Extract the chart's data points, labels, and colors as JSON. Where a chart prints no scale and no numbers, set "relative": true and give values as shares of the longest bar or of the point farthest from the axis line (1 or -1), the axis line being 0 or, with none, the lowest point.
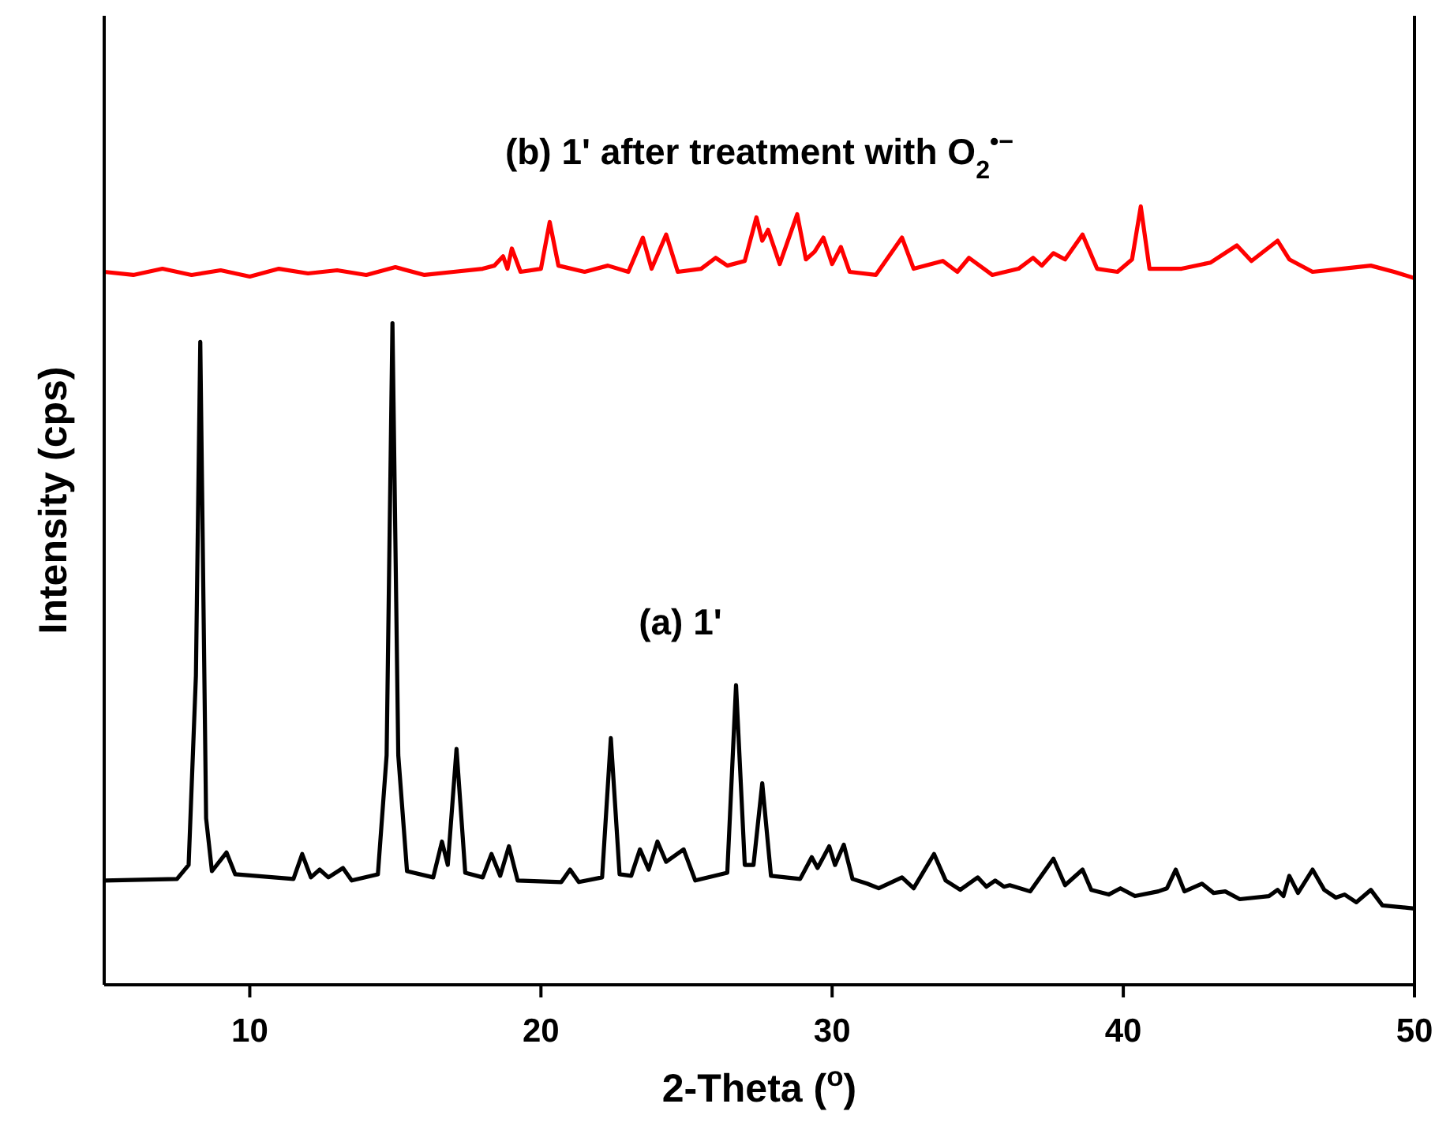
{
  "chart_data": {
    "type": "line",
    "relative": true,
    "xlabel": "2-Theta ($^{o}$)",
    "ylabel": "Intensity (cps)",
    "xlim": [
      5,
      50
    ],
    "xticks": [
      10,
      20,
      30,
      40,
      50
    ],
    "tick_labels": "x",
    "grid": false,
    "line_style": "solid",
    "series": [
      {
        "name": "(a) 1'",
        "color": "#000000",
        "x": [
          5,
          7.5,
          7.9,
          8.15,
          8.3,
          8.5,
          8.7,
          9.2,
          9.5,
          11.5,
          11.8,
          12.1,
          12.4,
          12.7,
          13.2,
          13.5,
          14.4,
          14.7,
          14.9,
          15.1,
          15.4,
          16.3,
          16.6,
          16.8,
          17.1,
          17.4,
          18,
          18.3,
          18.6,
          18.9,
          19.2,
          20.7,
          21,
          21.3,
          22.1,
          22.4,
          22.7,
          23.1,
          23.4,
          23.7,
          24,
          24.3,
          24.9,
          25.3,
          26.4,
          26.7,
          27,
          27.3,
          27.6,
          27.9,
          28.9,
          29.3,
          29.5,
          29.9,
          30.1,
          30.4,
          30.7,
          31.2,
          31.6,
          32.4,
          32.8,
          33.5,
          33.9,
          34.4,
          35,
          35.3,
          35.6,
          35.9,
          36.1,
          36.8,
          37.6,
          38,
          38.6,
          38.9,
          39.5,
          39.9,
          40.4,
          41.2,
          41.5,
          41.8,
          42.1,
          42.7,
          43.1,
          43.5,
          44,
          45,
          45.3,
          45.5,
          45.7,
          46,
          46.5,
          46.9,
          47.3,
          47.6,
          48,
          48.5,
          48.9,
          50
        ],
        "values": [
          0.134,
          0.136,
          0.154,
          0.397,
          0.826,
          0.214,
          0.146,
          0.17,
          0.142,
          0.136,
          0.168,
          0.138,
          0.148,
          0.138,
          0.15,
          0.134,
          0.142,
          0.295,
          0.85,
          0.295,
          0.146,
          0.138,
          0.184,
          0.154,
          0.303,
          0.144,
          0.138,
          0.168,
          0.14,
          0.178,
          0.134,
          0.132,
          0.148,
          0.132,
          0.138,
          0.317,
          0.142,
          0.14,
          0.174,
          0.148,
          0.184,
          0.158,
          0.174,
          0.134,
          0.144,
          0.385,
          0.154,
          0.154,
          0.259,
          0.14,
          0.136,
          0.164,
          0.15,
          0.178,
          0.154,
          0.18,
          0.136,
          0.13,
          0.124,
          0.138,
          0.124,
          0.168,
          0.134,
          0.122,
          0.138,
          0.126,
          0.134,
          0.126,
          0.128,
          0.12,
          0.162,
          0.128,
          0.148,
          0.122,
          0.116,
          0.124,
          0.114,
          0.12,
          0.124,
          0.148,
          0.12,
          0.13,
          0.118,
          0.12,
          0.11,
          0.114,
          0.122,
          0.114,
          0.14,
          0.118,
          0.148,
          0.122,
          0.112,
          0.116,
          0.106,
          0.122,
          0.102,
          0.098
        ]
      },
      {
        "name": "(b) 1' after treatment with O$_{2}$$^{•−}$",
        "color": "#ff0000",
        "x": [
          5,
          6,
          7,
          8,
          9,
          10,
          11,
          12,
          13,
          14,
          15,
          16,
          17,
          18,
          18.4,
          18.7,
          18.85,
          19,
          19.3,
          20,
          20.3,
          20.6,
          21.5,
          22.3,
          23,
          23.5,
          23.8,
          24.3,
          24.7,
          25.5,
          26,
          26.4,
          27,
          27.4,
          27.6,
          27.8,
          28.2,
          28.8,
          29.1,
          29.4,
          29.7,
          30,
          30.3,
          30.6,
          31.5,
          32.4,
          32.8,
          33.8,
          34.3,
          34.7,
          35.5,
          36.4,
          36.9,
          37.2,
          37.6,
          38,
          38.6,
          39.1,
          39.8,
          40.3,
          40.6,
          40.9,
          42,
          43,
          43.9,
          44.4,
          45.3,
          45.7,
          46.5,
          47.5,
          48.5,
          49.3,
          50
        ],
        "values": [
          0.916,
          0.912,
          0.92,
          0.912,
          0.918,
          0.91,
          0.92,
          0.914,
          0.918,
          0.912,
          0.922,
          0.912,
          0.916,
          0.92,
          0.924,
          0.936,
          0.92,
          0.946,
          0.916,
          0.92,
          0.98,
          0.924,
          0.916,
          0.924,
          0.916,
          0.96,
          0.92,
          0.964,
          0.916,
          0.92,
          0.934,
          0.924,
          0.93,
          0.986,
          0.956,
          0.97,
          0.926,
          0.99,
          0.932,
          0.942,
          0.96,
          0.926,
          0.948,
          0.916,
          0.912,
          0.96,
          0.92,
          0.93,
          0.916,
          0.934,
          0.912,
          0.92,
          0.934,
          0.924,
          0.94,
          0.932,
          0.964,
          0.92,
          0.916,
          0.932,
          1,
          0.92,
          0.92,
          0.928,
          0.95,
          0.93,
          0.956,
          0.932,
          0.916,
          0.92,
          0.924,
          0.916,
          0.908
        ]
      }
    ]
  }
}
